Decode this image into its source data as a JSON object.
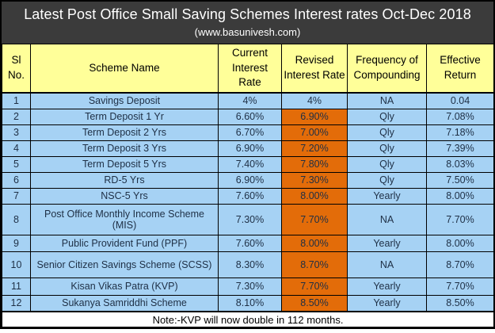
{
  "title": "Latest Post Office Small Saving Schemes Interest rates Oct-Dec 2018",
  "subtitle": "(www.basunivesh.com)",
  "note": "Note:-KVP will now double in 112 months.",
  "colors": {
    "title_bg": "#3B3B3B",
    "title_text": "#FFFFFF",
    "header_bg": "#FFFF99",
    "row_bg": "#A6D2F4",
    "highlight_bg": "#E36C09",
    "cell_text": "#1E2F45",
    "border": "#000000",
    "note_bg": "#FFFFFF"
  },
  "table": {
    "headers": [
      "Sl No.",
      "Scheme Name",
      "Current Interest Rate",
      "Revised Interest Rate",
      "Frequency of Compounding",
      "Effective Return"
    ],
    "rows": [
      {
        "no": "1",
        "scheme": "Savings Deposit",
        "current": "4%",
        "revised": "4%",
        "highlight": false,
        "frequency": "NA",
        "effective": "0.04"
      },
      {
        "no": "2",
        "scheme": "Term Deposit 1 Yr",
        "current": "6.60%",
        "revised": "6.90%",
        "highlight": true,
        "frequency": "Qly",
        "effective": "7.08%"
      },
      {
        "no": "3",
        "scheme": "Term Deposit 2 Yrs",
        "current": "6.70%",
        "revised": "7.00%",
        "highlight": true,
        "frequency": "Qly",
        "effective": "7.18%"
      },
      {
        "no": "4",
        "scheme": "Term Deposit 3 Yrs",
        "current": "6.90%",
        "revised": "7.20%",
        "highlight": true,
        "frequency": "Qly",
        "effective": "7.39%"
      },
      {
        "no": "5",
        "scheme": "Term Deposit 5 Yrs",
        "current": "7.40%",
        "revised": "7.80%",
        "highlight": true,
        "frequency": "Qly",
        "effective": "8.03%"
      },
      {
        "no": "6",
        "scheme": "RD-5 Yrs",
        "current": "6.90%",
        "revised": "7.30%",
        "highlight": true,
        "frequency": "Qly",
        "effective": "7.50%"
      },
      {
        "no": "7",
        "scheme": "NSC-5 Yrs",
        "current": "7.60%",
        "revised": "8.00%",
        "highlight": true,
        "frequency": "Yearly",
        "effective": "8.00%"
      },
      {
        "no": "8",
        "scheme": "Post Office Monthly Income Scheme (MIS)",
        "current": "7.30%",
        "revised": "7.70%",
        "highlight": true,
        "frequency": "NA",
        "effective": "7.70%"
      },
      {
        "no": "9",
        "scheme": "Public Provident Fund (PPF)",
        "current": "7.60%",
        "revised": "8.00%",
        "highlight": true,
        "frequency": "Yearly",
        "effective": "8.00%"
      },
      {
        "no": "10",
        "scheme": "Senior Citizen Savings Scheme (SCSS)",
        "current": "8.30%",
        "revised": "8.70%",
        "highlight": true,
        "frequency": "NA",
        "effective": "8.70%"
      },
      {
        "no": "11",
        "scheme": "Kisan Vikas Patra (KVP)",
        "current": "7.30%",
        "revised": "7.70%",
        "highlight": true,
        "frequency": "Yearly",
        "effective": "7.70%"
      },
      {
        "no": "12",
        "scheme": "Sukanya Samriddhi Scheme",
        "current": "8.10%",
        "revised": "8.50%",
        "highlight": true,
        "frequency": "Yearly",
        "effective": "8.50%"
      }
    ]
  },
  "chart_data": {
    "type": "table",
    "title": "Latest Post Office Small Saving Schemes Interest rates Oct-Dec 2018",
    "source_label": "(www.basunivesh.com)",
    "columns": [
      "Sl No.",
      "Scheme Name",
      "Current Interest Rate",
      "Revised Interest Rate",
      "Frequency of Compounding",
      "Effective Return"
    ],
    "rows": [
      [
        "1",
        "Savings Deposit",
        "4%",
        "4%",
        "NA",
        "0.04"
      ],
      [
        "2",
        "Term Deposit 1 Yr",
        "6.60%",
        "6.90%",
        "Qly",
        "7.08%"
      ],
      [
        "3",
        "Term Deposit 2 Yrs",
        "6.70%",
        "7.00%",
        "Qly",
        "7.18%"
      ],
      [
        "4",
        "Term Deposit 3 Yrs",
        "6.90%",
        "7.20%",
        "Qly",
        "7.39%"
      ],
      [
        "5",
        "Term Deposit 5 Yrs",
        "7.40%",
        "7.80%",
        "Qly",
        "8.03%"
      ],
      [
        "6",
        "RD-5 Yrs",
        "6.90%",
        "7.30%",
        "Qly",
        "7.50%"
      ],
      [
        "7",
        "NSC-5 Yrs",
        "7.60%",
        "8.00%",
        "Yearly",
        "8.00%"
      ],
      [
        "8",
        "Post Office Monthly Income Scheme (MIS)",
        "7.30%",
        "7.70%",
        "NA",
        "7.70%"
      ],
      [
        "9",
        "Public Provident Fund (PPF)",
        "7.60%",
        "8.00%",
        "Yearly",
        "8.00%"
      ],
      [
        "10",
        "Senior Citizen Savings Scheme (SCSS)",
        "8.30%",
        "8.70%",
        "NA",
        "8.70%"
      ],
      [
        "11",
        "Kisan Vikas Patra (KVP)",
        "7.30%",
        "7.70%",
        "Yearly",
        "7.70%"
      ],
      [
        "12",
        "Sukanya Samriddhi Scheme",
        "8.10%",
        "8.50%",
        "Yearly",
        "8.50%"
      ]
    ],
    "highlighted_column": "Revised Interest Rate",
    "highlighted_rows_in_revised_column": [
      2,
      3,
      4,
      5,
      6,
      7,
      8,
      9,
      10,
      11,
      12
    ],
    "note": "Note:-KVP will now double in 112 months."
  }
}
